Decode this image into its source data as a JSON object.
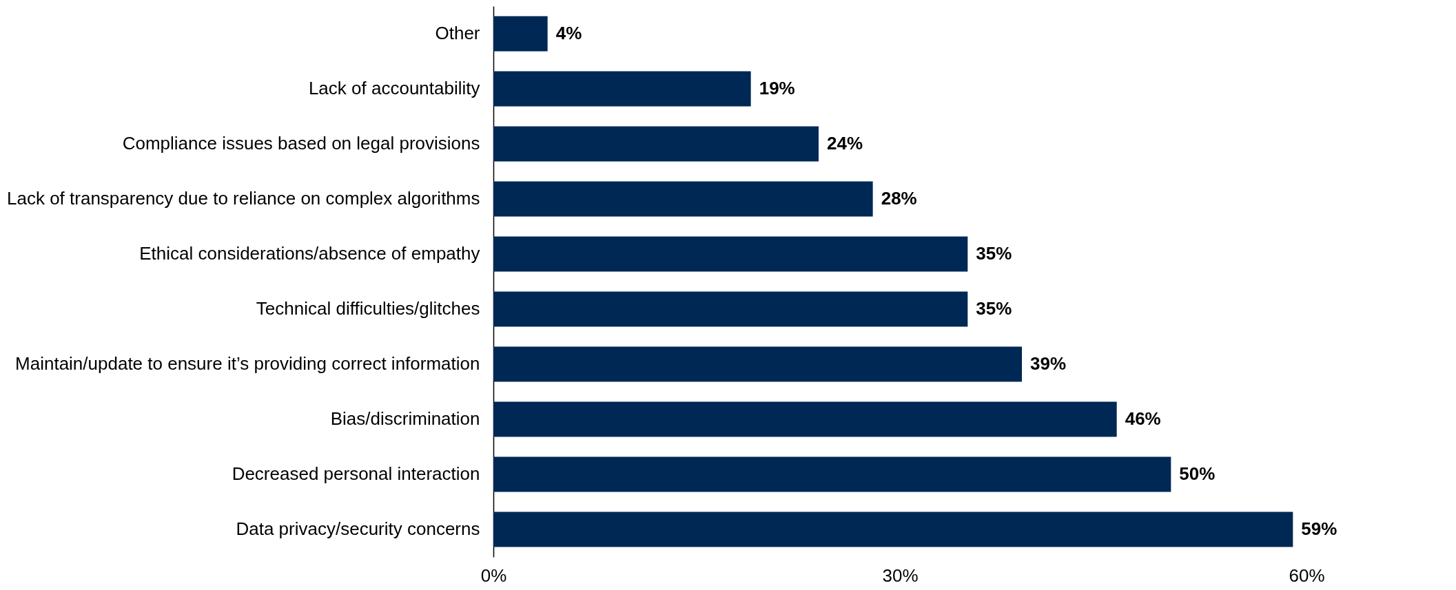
{
  "chart_data": {
    "type": "bar",
    "orientation": "horizontal",
    "categories": [
      "Other",
      "Lack of accountability",
      "Compliance issues based on legal provisions",
      "Lack of transparency due to reliance on complex algorithms",
      "Ethical considerations/absence of empathy",
      "Technical difficulties/glitches",
      "Maintain/update to ensure it’s providing correct information",
      "Bias/discrimination",
      "Decreased personal interaction",
      "Data privacy/security concerns"
    ],
    "values": [
      4,
      19,
      24,
      28,
      35,
      35,
      39,
      46,
      50,
      59
    ],
    "value_labels": [
      "4%",
      "19%",
      "24%",
      "28%",
      "35%",
      "35%",
      "39%",
      "46%",
      "50%",
      "59%"
    ],
    "color": "#002855",
    "xlim": [
      0,
      60
    ],
    "xticks": [
      {
        "value": 0,
        "label": "0%"
      },
      {
        "value": 30,
        "label": "30%"
      },
      {
        "value": 60,
        "label": "60%"
      }
    ],
    "grid": false
  }
}
